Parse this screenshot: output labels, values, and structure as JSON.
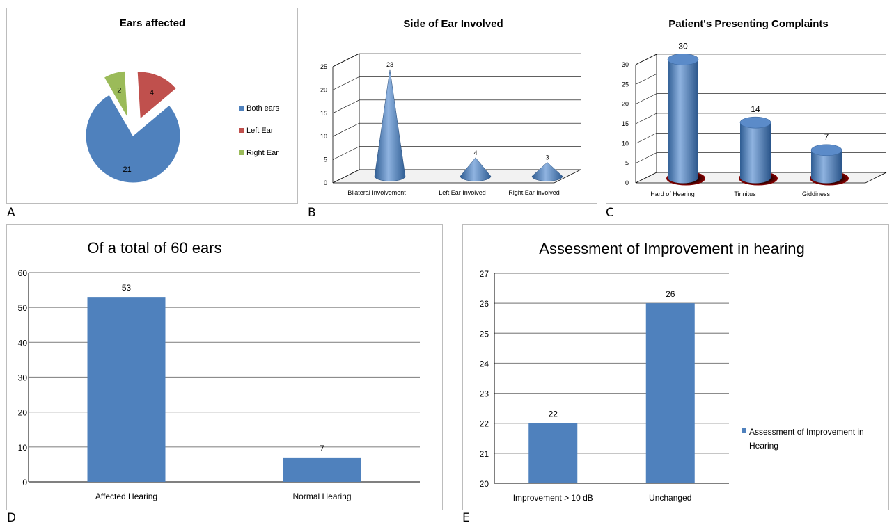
{
  "panel_labels": [
    "A",
    "B",
    "C",
    "D",
    "E"
  ],
  "colors": {
    "blue": "#4f81bd",
    "red": "#c0504d",
    "green": "#9bbb59",
    "grid": "#8c8c8c"
  },
  "chart_data": [
    {
      "type": "pie",
      "title": "Ears affected",
      "categories": [
        "Both ears",
        "Left Ear",
        "Right Ear"
      ],
      "values": [
        21,
        4,
        2
      ],
      "colors": [
        "#4f81bd",
        "#c0504d",
        "#9bbb59"
      ],
      "exploded": [
        "Left Ear",
        "Right Ear"
      ],
      "legend": "right"
    },
    {
      "type": "bar",
      "style": "3d-cone",
      "title": "Side of Ear Involved",
      "categories": [
        "Bilateral Involvement",
        "Left Ear Involved",
        "Right Ear Involved"
      ],
      "values": [
        23,
        4,
        3
      ],
      "ylim": [
        0,
        25
      ],
      "yticks": [
        0,
        5,
        10,
        15,
        20,
        25
      ],
      "grid": true
    },
    {
      "type": "bar",
      "style": "3d-cylinder",
      "title": "Patient's Presenting Complaints",
      "categories": [
        "Hard of Hearing",
        "Tinnitus",
        "Giddiness"
      ],
      "values": [
        30,
        14,
        7
      ],
      "ylim": [
        0,
        30
      ],
      "yticks": [
        0,
        5,
        10,
        15,
        20,
        25,
        30
      ],
      "grid": true
    },
    {
      "type": "bar",
      "title": "Of a total of 60 ears",
      "categories": [
        "Affected Hearing",
        "Normal Hearing"
      ],
      "values": [
        53,
        7
      ],
      "ylim": [
        0,
        60
      ],
      "yticks": [
        0,
        10,
        20,
        30,
        40,
        50,
        60
      ],
      "grid": true
    },
    {
      "type": "bar",
      "title": "Assessment of Improvement in hearing",
      "categories": [
        "Improvement > 10 dB",
        "Unchanged"
      ],
      "values": [
        22,
        26
      ],
      "ylim": [
        20,
        27
      ],
      "yticks": [
        20,
        21,
        22,
        23,
        24,
        25,
        26,
        27
      ],
      "grid": true,
      "series": [
        {
          "name": "Assessment of Improvement  in Hearing",
          "values": [
            22,
            26
          ]
        }
      ],
      "legend": "right"
    }
  ]
}
